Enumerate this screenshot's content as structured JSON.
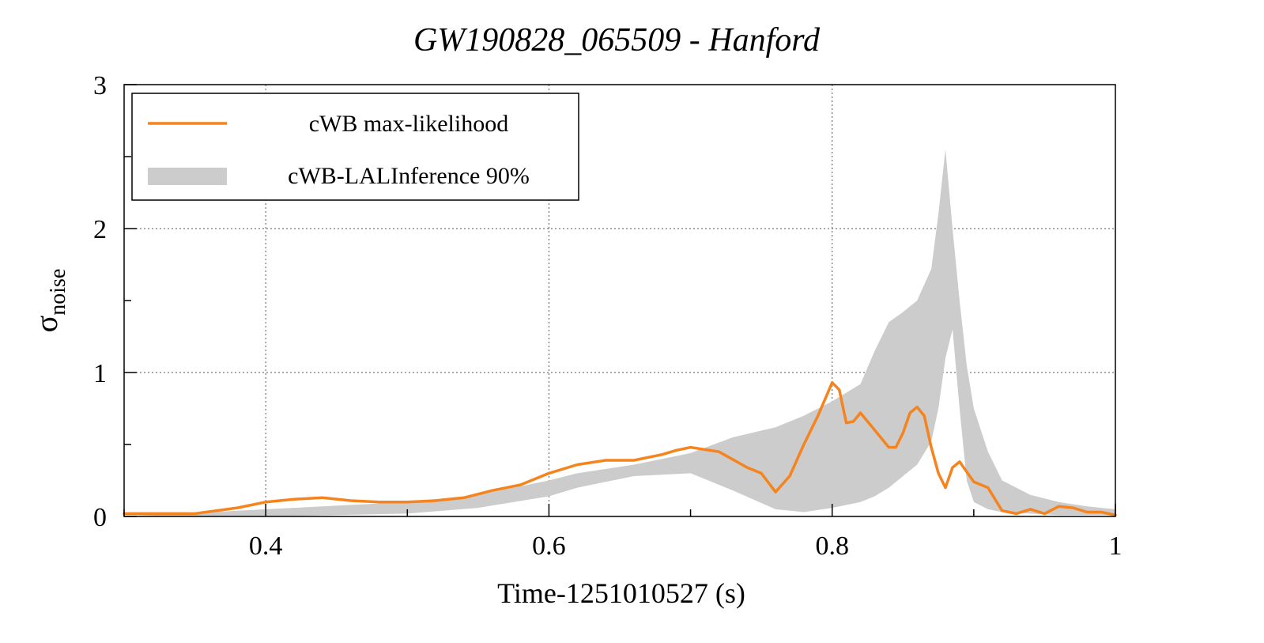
{
  "chart_data": {
    "type": "line",
    "title": "GW190828_065509 - Hanford",
    "xlabel": "Time-1251010527 (s)",
    "ylabel": {
      "base": "σ",
      "subscript": "noise"
    },
    "xlim": [
      0.3,
      1.0
    ],
    "ylim": [
      0,
      3
    ],
    "x_ticks": [
      {
        "value": 0.4,
        "label": "0.4"
      },
      {
        "value": 0.6,
        "label": "0.6"
      },
      {
        "value": 0.8,
        "label": "0.8"
      },
      {
        "value": 1.0,
        "label": "1"
      }
    ],
    "y_ticks": [
      {
        "value": 0,
        "label": "0"
      },
      {
        "value": 1,
        "label": "1"
      },
      {
        "value": 2,
        "label": "2"
      },
      {
        "value": 3,
        "label": "3"
      }
    ],
    "grid": true,
    "legend": {
      "placement": "top-left",
      "entries": [
        {
          "label": "cWB max-likelihood",
          "kind": "line",
          "color": "#f5841f"
        },
        {
          "label": "cWB-LALInference 90%",
          "kind": "band",
          "color": "#cccccc"
        }
      ]
    },
    "series": [
      {
        "name": "cWB max-likelihood",
        "kind": "line",
        "color": "#f5841f",
        "x": [
          0.3,
          0.35,
          0.38,
          0.4,
          0.42,
          0.44,
          0.46,
          0.48,
          0.5,
          0.52,
          0.54,
          0.56,
          0.58,
          0.6,
          0.62,
          0.64,
          0.66,
          0.68,
          0.69,
          0.7,
          0.72,
          0.74,
          0.75,
          0.76,
          0.77,
          0.78,
          0.79,
          0.8,
          0.805,
          0.81,
          0.815,
          0.82,
          0.83,
          0.84,
          0.845,
          0.85,
          0.855,
          0.86,
          0.865,
          0.87,
          0.875,
          0.88,
          0.885,
          0.89,
          0.9,
          0.91,
          0.92,
          0.93,
          0.94,
          0.95,
          0.96,
          0.97,
          0.98,
          0.99,
          1.0
        ],
        "y": [
          0.02,
          0.02,
          0.06,
          0.1,
          0.12,
          0.13,
          0.11,
          0.1,
          0.1,
          0.11,
          0.13,
          0.18,
          0.22,
          0.3,
          0.36,
          0.39,
          0.39,
          0.43,
          0.46,
          0.48,
          0.45,
          0.34,
          0.3,
          0.17,
          0.28,
          0.5,
          0.7,
          0.93,
          0.88,
          0.65,
          0.66,
          0.72,
          0.6,
          0.48,
          0.48,
          0.58,
          0.72,
          0.76,
          0.7,
          0.48,
          0.3,
          0.2,
          0.34,
          0.38,
          0.24,
          0.2,
          0.04,
          0.02,
          0.05,
          0.02,
          0.07,
          0.06,
          0.03,
          0.03,
          0.01
        ]
      },
      {
        "name": "cWB-LALInference 90%",
        "kind": "band",
        "color": "#cccccc",
        "x": [
          0.3,
          0.4,
          0.5,
          0.55,
          0.6,
          0.62,
          0.66,
          0.7,
          0.73,
          0.76,
          0.78,
          0.8,
          0.82,
          0.83,
          0.84,
          0.85,
          0.86,
          0.87,
          0.875,
          0.88,
          0.885,
          0.89,
          0.895,
          0.9,
          0.91,
          0.92,
          0.94,
          0.96,
          0.98,
          1.0
        ],
        "lower": [
          0.0,
          0.0,
          0.02,
          0.06,
          0.14,
          0.2,
          0.28,
          0.3,
          0.18,
          0.05,
          0.03,
          0.06,
          0.1,
          0.14,
          0.2,
          0.28,
          0.36,
          0.52,
          0.75,
          1.1,
          1.3,
          0.75,
          0.25,
          0.1,
          0.05,
          0.03,
          0.02,
          0.01,
          0.01,
          0.01
        ],
        "upper": [
          0.0,
          0.05,
          0.1,
          0.15,
          0.25,
          0.3,
          0.36,
          0.44,
          0.55,
          0.62,
          0.7,
          0.8,
          0.92,
          1.15,
          1.35,
          1.42,
          1.5,
          1.72,
          2.1,
          2.55,
          2.0,
          1.5,
          1.05,
          0.75,
          0.45,
          0.25,
          0.15,
          0.1,
          0.07,
          0.05
        ]
      }
    ]
  }
}
